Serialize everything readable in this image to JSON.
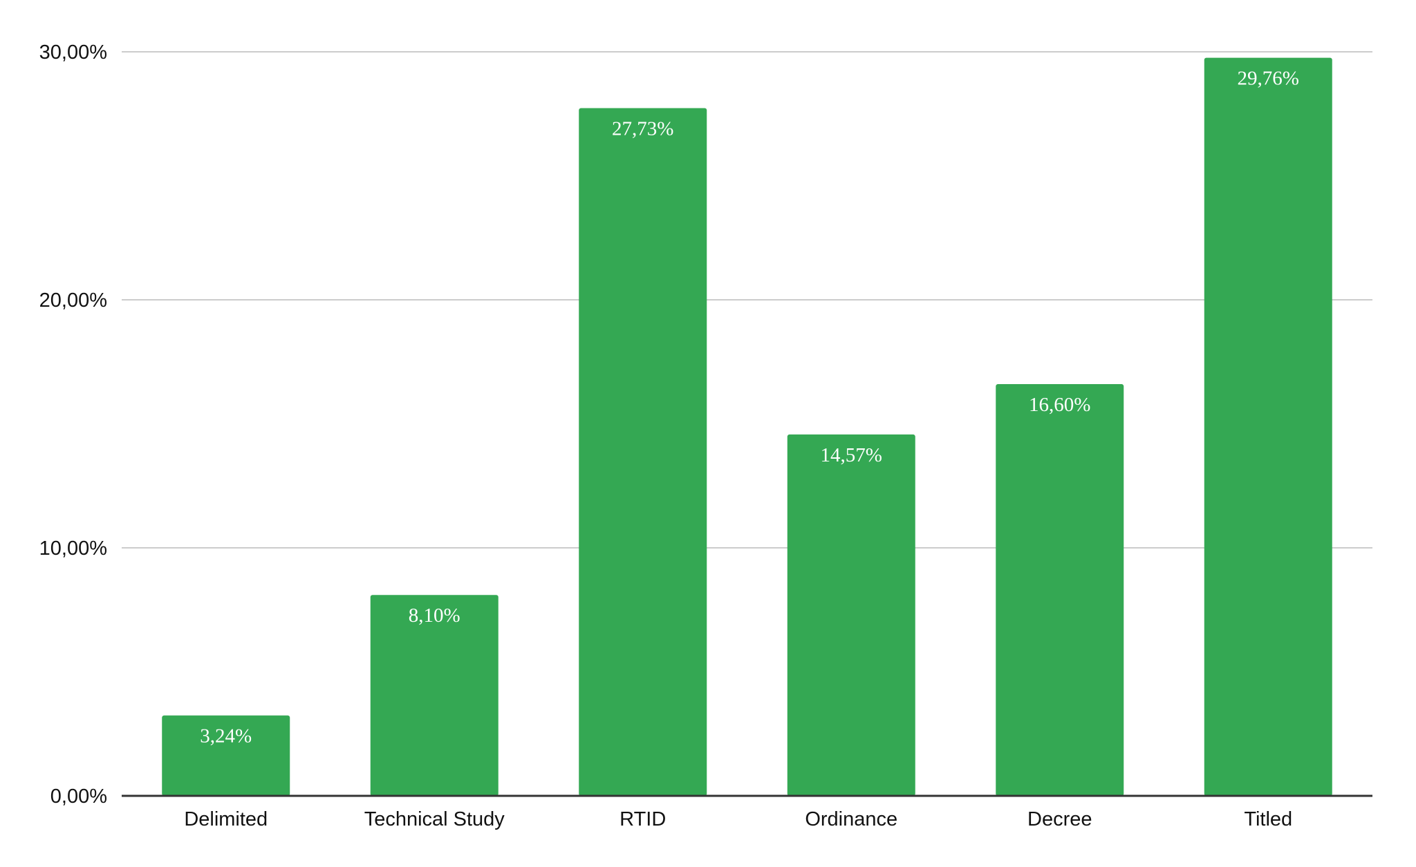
{
  "chart_data": {
    "type": "bar",
    "categories": [
      "Delimited",
      "Technical Study",
      "RTID",
      "Ordinance",
      "Decree",
      "Titled"
    ],
    "values": [
      3.24,
      8.1,
      27.73,
      14.57,
      16.6,
      29.76
    ],
    "data_labels": [
      "3,24%",
      "8,10%",
      "27,73%",
      "14,57%",
      "16,60%",
      "29,76%"
    ],
    "y_ticks": [
      0,
      10,
      20,
      30
    ],
    "y_tick_labels": [
      "0,00%",
      "10,00%",
      "20,00%",
      "30,00%"
    ],
    "ylim": [
      0,
      30
    ],
    "grid": true,
    "bar_color": "#34a853",
    "grid_color": "#cccccc",
    "axis_color": "#333333"
  }
}
